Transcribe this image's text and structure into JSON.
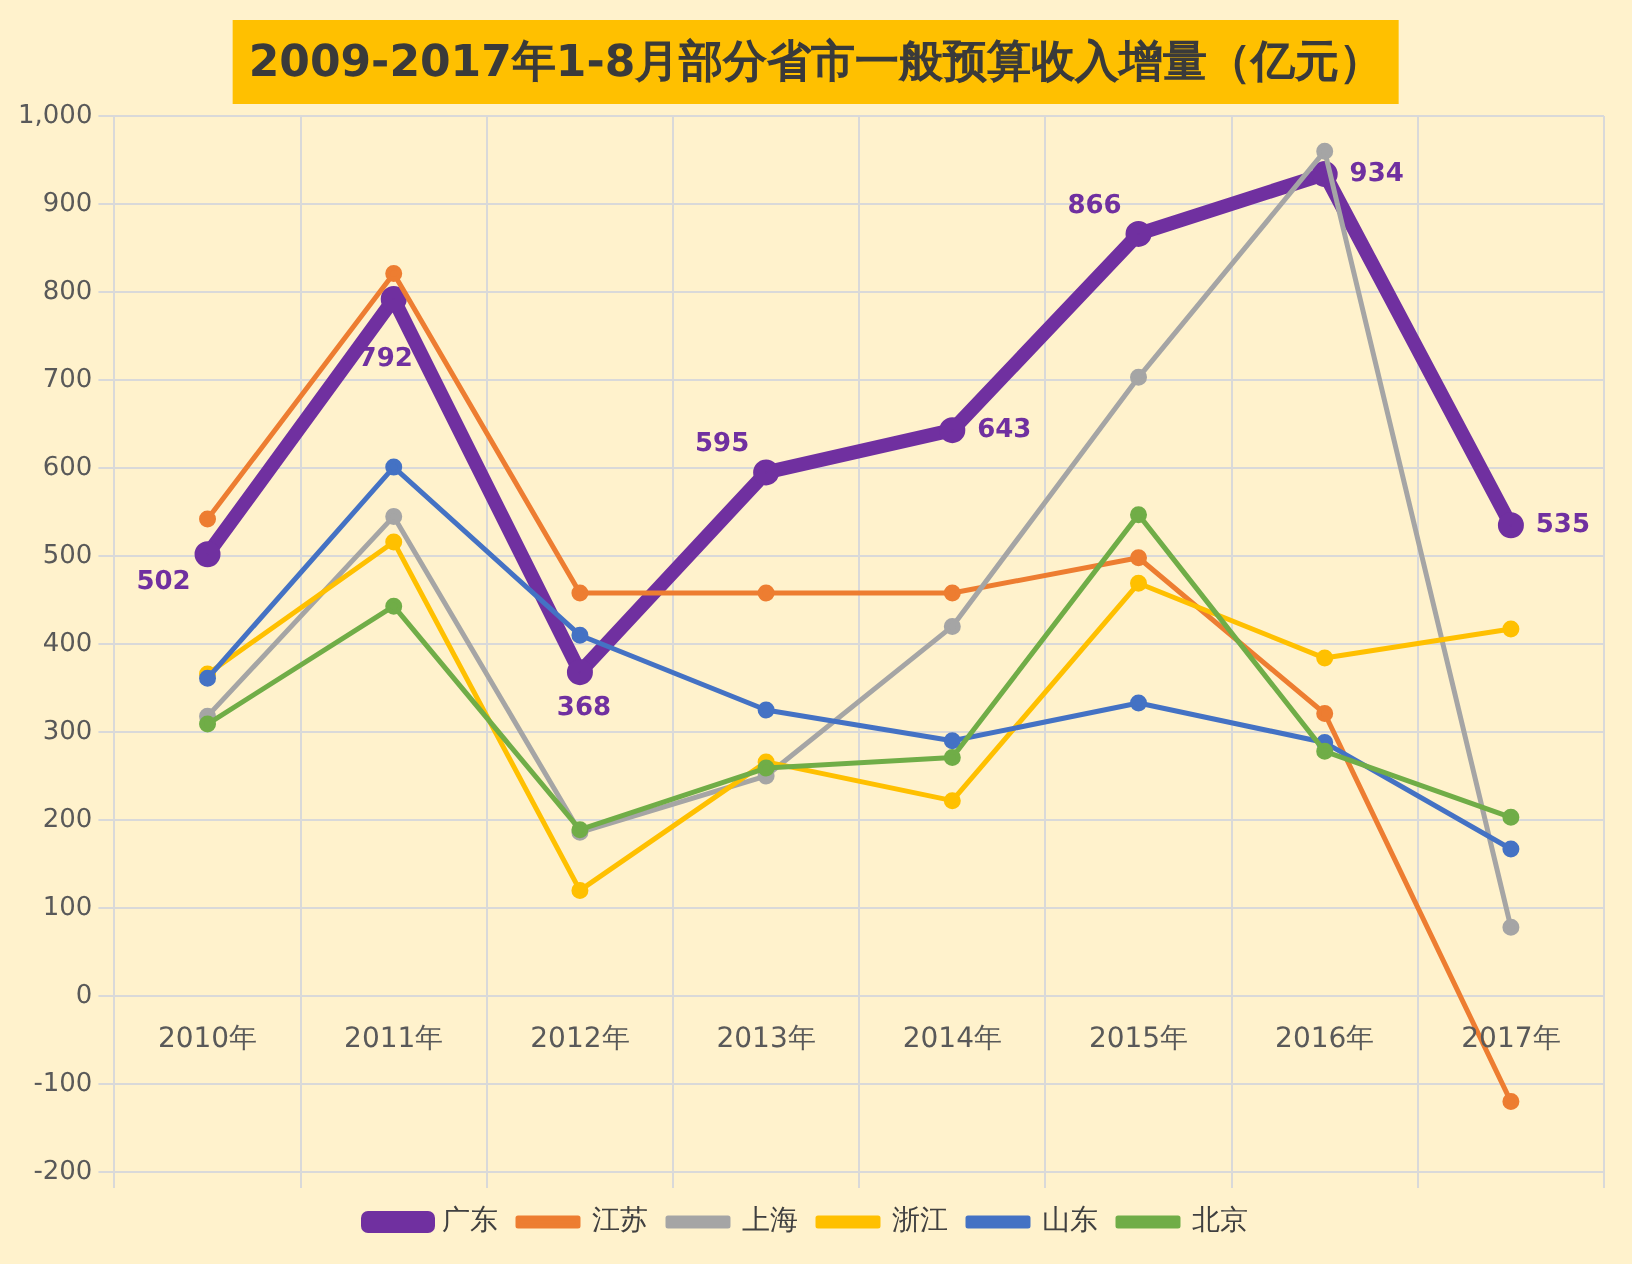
{
  "chart_data": {
    "type": "line",
    "title": "2009-2017年1-8月部分省市一般预算收入增量（亿元）",
    "categories": [
      "2010年",
      "2011年",
      "2012年",
      "2013年",
      "2014年",
      "2015年",
      "2016年",
      "2017年"
    ],
    "series": [
      {
        "name": "广东",
        "color": "#7030a0",
        "values": [
          502,
          792,
          368,
          595,
          643,
          866,
          934,
          535
        ],
        "value_labels": [
          "502",
          "792",
          "368",
          "595",
          "643",
          "866",
          "934",
          "535"
        ]
      },
      {
        "name": "江苏",
        "color": "#ed7d31",
        "values": [
          542,
          821,
          458,
          458,
          458,
          498,
          321,
          -120
        ]
      },
      {
        "name": "上海",
        "color": "#a5a5a5",
        "values": [
          318,
          545,
          186,
          250,
          420,
          703,
          960,
          78
        ]
      },
      {
        "name": "浙江",
        "color": "#ffc000",
        "values": [
          366,
          516,
          120,
          266,
          222,
          469,
          384,
          417
        ]
      },
      {
        "name": "山东",
        "color": "#4472c4",
        "values": [
          361,
          601,
          410,
          325,
          290,
          333,
          288,
          167
        ]
      },
      {
        "name": "北京",
        "color": "#70ad47",
        "values": [
          309,
          443,
          189,
          259,
          271,
          547,
          278,
          203
        ]
      }
    ],
    "ylim": [
      -200,
      1000
    ],
    "yticks": [
      -200,
      -100,
      0,
      100,
      200,
      300,
      400,
      500,
      600,
      700,
      800,
      900,
      {
        "value": 1000,
        "label": "1,000"
      }
    ],
    "grid": true,
    "legend": "bottom",
    "marker": "circle",
    "line_style": "solid"
  }
}
